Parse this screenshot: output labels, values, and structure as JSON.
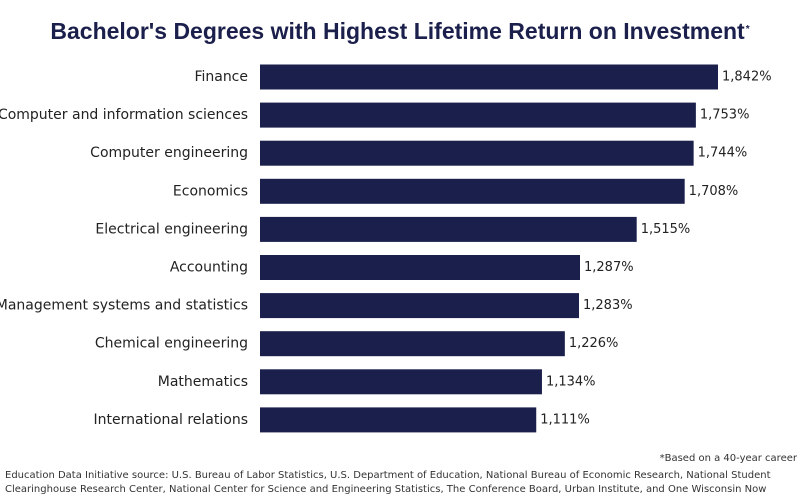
{
  "chart_data": {
    "type": "bar",
    "orientation": "horizontal",
    "title": "Bachelor's Degrees with Highest Lifetime Return on Investment",
    "title_marker": "*",
    "categories": [
      "Finance",
      "Computer and information sciences",
      "Computer engineering",
      "Economics",
      "Electrical engineering",
      "Accounting",
      "Management systems and statistics",
      "Chemical engineering",
      "Mathematics",
      "International relations"
    ],
    "values": [
      1842,
      1753,
      1744,
      1708,
      1515,
      1287,
      1283,
      1226,
      1134,
      1111
    ],
    "value_labels": [
      "1,842%",
      "1,753%",
      "1,744%",
      "1,708%",
      "1,515%",
      "1,287%",
      "1,283%",
      "1,226%",
      "1,134%",
      "1,111%"
    ],
    "xlim": [
      0,
      1842
    ],
    "grid": false,
    "legend": "none",
    "bar_color": "#1b1f4b"
  },
  "footnote": "*Based on a 40-year career",
  "source": "Education Data Initiative source: U.S. Bureau of Labor Statistics, U.S. Department of Education, National Bureau of Economic Research, National Student Clearinghouse Research Center, National Center for Science and Engineering Statistics, The Conference Board, Urban Institute, and One Wisconsin Now"
}
